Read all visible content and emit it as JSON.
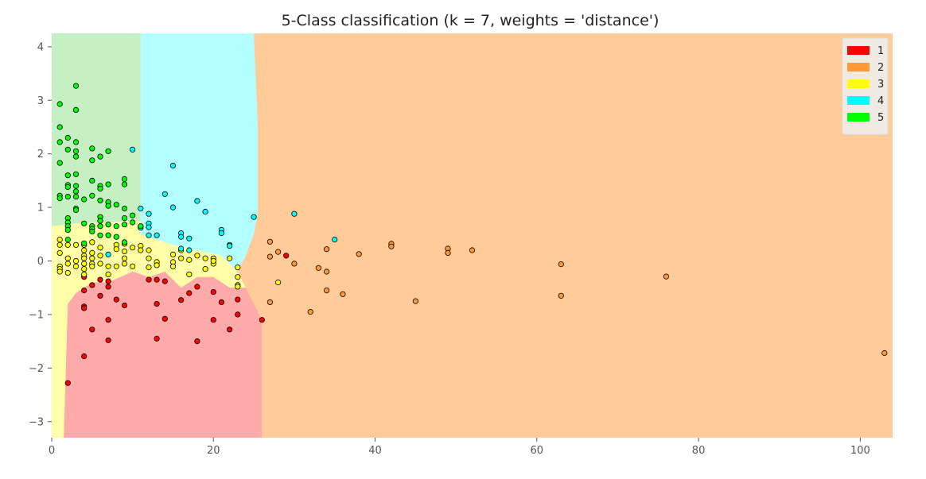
{
  "chart_data": {
    "type": "scatter",
    "title": "5-Class classification (k = 7, weights = 'distance')",
    "xlabel": "",
    "ylabel": "",
    "xlim": [
      0,
      104
    ],
    "ylim": [
      -3.3,
      4.25
    ],
    "xticks": [
      0,
      20,
      40,
      60,
      80,
      100
    ],
    "yticks": [
      -3,
      -2,
      -1,
      0,
      1,
      2,
      3,
      4
    ],
    "grid": false,
    "legend_position": "top-right",
    "background": "decision-regions",
    "region_colors": {
      "1": "#ffaaaa",
      "2": "#ffcc99",
      "3": "#ffffaa",
      "4": "#b3ffff",
      "5": "#c4f0c4"
    },
    "decision_regions": [
      {
        "class": "5",
        "polygon": [
          [
            0,
            4.25
          ],
          [
            11,
            4.25
          ],
          [
            11,
            0.75
          ],
          [
            7,
            0.72
          ],
          [
            3,
            0.7
          ],
          [
            0,
            0.65
          ]
        ]
      },
      {
        "class": "4",
        "polygon": [
          [
            11,
            4.25
          ],
          [
            25,
            4.25
          ],
          [
            25.5,
            2.5
          ],
          [
            25.5,
            0.9
          ],
          [
            25,
            0.5
          ],
          [
            24,
            0.1
          ],
          [
            23,
            -0.2
          ],
          [
            21,
            0.1
          ],
          [
            18,
            0.2
          ],
          [
            15,
            0.3
          ],
          [
            13,
            0.4
          ],
          [
            11,
            0.5
          ]
        ]
      },
      {
        "class": "3",
        "polygon": [
          [
            0,
            0.65
          ],
          [
            3,
            0.7
          ],
          [
            7,
            0.72
          ],
          [
            11,
            0.75
          ],
          [
            11,
            0.5
          ],
          [
            13,
            0.4
          ],
          [
            15,
            0.3
          ],
          [
            18,
            0.2
          ],
          [
            21,
            0.1
          ],
          [
            23,
            -0.2
          ],
          [
            24,
            -0.5
          ],
          [
            22,
            -0.5
          ],
          [
            20,
            -0.3
          ],
          [
            18,
            -0.3
          ],
          [
            16,
            -0.5
          ],
          [
            14,
            -0.2
          ],
          [
            12,
            -0.3
          ],
          [
            10,
            -0.2
          ],
          [
            7,
            -0.4
          ],
          [
            5,
            -0.4
          ],
          [
            3,
            -0.6
          ],
          [
            2,
            -0.8
          ],
          [
            1.5,
            -3.3
          ],
          [
            0,
            -3.3
          ]
        ]
      },
      {
        "class": "1",
        "polygon": [
          [
            1.5,
            -3.3
          ],
          [
            2,
            -0.8
          ],
          [
            3,
            -0.6
          ],
          [
            5,
            -0.4
          ],
          [
            7,
            -0.4
          ],
          [
            10,
            -0.2
          ],
          [
            12,
            -0.3
          ],
          [
            14,
            -0.2
          ],
          [
            16,
            -0.5
          ],
          [
            18,
            -0.3
          ],
          [
            20,
            -0.3
          ],
          [
            22,
            -0.5
          ],
          [
            24,
            -0.5
          ],
          [
            25,
            -0.8
          ],
          [
            26,
            -1.1
          ],
          [
            26,
            -3.3
          ]
        ]
      },
      {
        "class": "2",
        "polygon": [
          [
            25,
            4.25
          ],
          [
            104,
            4.25
          ],
          [
            104,
            -3.3
          ],
          [
            26,
            -3.3
          ],
          [
            26,
            -1.1
          ],
          [
            25,
            -0.8
          ],
          [
            24,
            -0.5
          ],
          [
            25,
            0.5
          ],
          [
            25.5,
            0.9
          ],
          [
            25.5,
            2.5
          ]
        ]
      }
    ],
    "colors": {
      "1": "#ff0000",
      "2": "#ff9933",
      "3": "#ffff00",
      "4": "#00ffff",
      "5": "#00ff00"
    },
    "legend": [
      "1",
      "2",
      "3",
      "4",
      "5"
    ],
    "series": [
      {
        "name": "1",
        "points": [
          [
            2,
            -2.28
          ],
          [
            4,
            -0.3
          ],
          [
            4,
            -0.55
          ],
          [
            4,
            -0.85
          ],
          [
            4,
            -0.88
          ],
          [
            4,
            -1.78
          ],
          [
            5,
            -0.45
          ],
          [
            5,
            -1.28
          ],
          [
            6,
            -0.35
          ],
          [
            6,
            -0.65
          ],
          [
            7,
            -0.38
          ],
          [
            7,
            -0.48
          ],
          [
            7,
            -1.1
          ],
          [
            7,
            -1.48
          ],
          [
            8,
            -0.72
          ],
          [
            9,
            -0.83
          ],
          [
            12,
            -0.35
          ],
          [
            13,
            -0.35
          ],
          [
            13,
            -0.8
          ],
          [
            13,
            -1.45
          ],
          [
            14,
            -0.38
          ],
          [
            14,
            -1.08
          ],
          [
            16,
            -0.73
          ],
          [
            17,
            -0.6
          ],
          [
            18,
            -0.48
          ],
          [
            18,
            -1.5
          ],
          [
            20,
            -0.58
          ],
          [
            20,
            -1.1
          ],
          [
            21,
            -0.77
          ],
          [
            22,
            -1.28
          ],
          [
            23,
            -0.72
          ],
          [
            23,
            -1.0
          ],
          [
            26,
            -1.1
          ],
          [
            29,
            0.1
          ]
        ]
      },
      {
        "name": "2",
        "points": [
          [
            27,
            0.36
          ],
          [
            27,
            0.08
          ],
          [
            28,
            0.17
          ],
          [
            27,
            -0.77
          ],
          [
            30,
            -0.05
          ],
          [
            32,
            -0.95
          ],
          [
            33,
            -0.13
          ],
          [
            34,
            0.22
          ],
          [
            34,
            -0.2
          ],
          [
            34,
            -0.55
          ],
          [
            36,
            -0.62
          ],
          [
            38,
            0.13
          ],
          [
            42,
            0.32
          ],
          [
            42,
            0.27
          ],
          [
            45,
            -0.75
          ],
          [
            49,
            0.23
          ],
          [
            49,
            0.15
          ],
          [
            52,
            0.2
          ],
          [
            63,
            -0.06
          ],
          [
            63,
            -0.65
          ],
          [
            76,
            -0.29
          ],
          [
            103,
            -1.72
          ]
        ]
      },
      {
        "name": "3",
        "points": [
          [
            1,
            0.3
          ],
          [
            1,
            0.15
          ],
          [
            1,
            0.4
          ],
          [
            1,
            -0.1
          ],
          [
            1,
            -0.15
          ],
          [
            1,
            -0.2
          ],
          [
            2,
            0.3
          ],
          [
            2,
            0.05
          ],
          [
            2,
            -0.05
          ],
          [
            2,
            -0.22
          ],
          [
            3,
            0.3
          ],
          [
            3,
            0.0
          ],
          [
            3,
            -0.1
          ],
          [
            4,
            0.3
          ],
          [
            4,
            0.2
          ],
          [
            4,
            0.1
          ],
          [
            4,
            0.05
          ],
          [
            4,
            -0.05
          ],
          [
            4,
            -0.15
          ],
          [
            4,
            -0.25
          ],
          [
            5,
            0.35
          ],
          [
            5,
            0.15
          ],
          [
            5,
            0.05
          ],
          [
            5,
            -0.05
          ],
          [
            5,
            -0.1
          ],
          [
            6,
            0.25
          ],
          [
            6,
            0.1
          ],
          [
            6,
            -0.05
          ],
          [
            7,
            -0.1
          ],
          [
            7,
            -0.25
          ],
          [
            8,
            0.3
          ],
          [
            8,
            0.22
          ],
          [
            8,
            -0.1
          ],
          [
            9,
            0.32
          ],
          [
            9,
            0.18
          ],
          [
            9,
            0.05
          ],
          [
            9,
            -0.05
          ],
          [
            10,
            0.25
          ],
          [
            10,
            -0.1
          ],
          [
            11,
            0.28
          ],
          [
            11,
            0.2
          ],
          [
            12,
            0.05
          ],
          [
            12,
            -0.12
          ],
          [
            12,
            0.2
          ],
          [
            13,
            -0.02
          ],
          [
            13,
            -0.08
          ],
          [
            15,
            0.12
          ],
          [
            15,
            -0.02
          ],
          [
            15,
            -0.1
          ],
          [
            16,
            0.05
          ],
          [
            16,
            0.2
          ],
          [
            17,
            0.02
          ],
          [
            17,
            -0.25
          ],
          [
            18,
            0.1
          ],
          [
            19,
            0.05
          ],
          [
            19,
            -0.15
          ],
          [
            20,
            0.05
          ],
          [
            20,
            -0.05
          ],
          [
            20,
            0.0
          ],
          [
            22,
            0.3
          ],
          [
            22,
            0.05
          ],
          [
            23,
            -0.12
          ],
          [
            23,
            -0.3
          ],
          [
            23,
            -0.45
          ],
          [
            23,
            -0.48
          ],
          [
            28,
            -0.4
          ]
        ]
      },
      {
        "name": "4",
        "points": [
          [
            7,
            0.12
          ],
          [
            10,
            2.08
          ],
          [
            11,
            0.98
          ],
          [
            11,
            0.62
          ],
          [
            12,
            0.88
          ],
          [
            12,
            0.7
          ],
          [
            12,
            0.63
          ],
          [
            12,
            0.48
          ],
          [
            13,
            0.48
          ],
          [
            14,
            1.25
          ],
          [
            15,
            1.78
          ],
          [
            15,
            1.0
          ],
          [
            16,
            0.52
          ],
          [
            16,
            0.45
          ],
          [
            16,
            0.23
          ],
          [
            17,
            0.42
          ],
          [
            17,
            0.2
          ],
          [
            18,
            1.12
          ],
          [
            19,
            0.92
          ],
          [
            21,
            0.58
          ],
          [
            21,
            0.52
          ],
          [
            22,
            0.28
          ],
          [
            25,
            0.82
          ],
          [
            30,
            0.88
          ],
          [
            35,
            0.4
          ]
        ]
      },
      {
        "name": "5",
        "points": [
          [
            1,
            2.93
          ],
          [
            1,
            2.5
          ],
          [
            1,
            2.22
          ],
          [
            1,
            1.83
          ],
          [
            1,
            1.22
          ],
          [
            1,
            1.17
          ],
          [
            2,
            2.3
          ],
          [
            2,
            2.08
          ],
          [
            2,
            1.6
          ],
          [
            2,
            1.42
          ],
          [
            2,
            1.38
          ],
          [
            2,
            1.2
          ],
          [
            2,
            0.8
          ],
          [
            2,
            0.72
          ],
          [
            2,
            0.65
          ],
          [
            2,
            0.58
          ],
          [
            2,
            0.4
          ],
          [
            3,
            3.27
          ],
          [
            3,
            2.82
          ],
          [
            3,
            2.22
          ],
          [
            3,
            2.05
          ],
          [
            3,
            1.95
          ],
          [
            3,
            1.62
          ],
          [
            3,
            1.4
          ],
          [
            3,
            1.3
          ],
          [
            3,
            1.2
          ],
          [
            3,
            0.98
          ],
          [
            3,
            0.95
          ],
          [
            4,
            1.15
          ],
          [
            4,
            0.7
          ],
          [
            4,
            0.33
          ],
          [
            5,
            2.1
          ],
          [
            5,
            1.88
          ],
          [
            5,
            1.5
          ],
          [
            5,
            1.22
          ],
          [
            5,
            0.65
          ],
          [
            5,
            0.6
          ],
          [
            5,
            0.55
          ],
          [
            6,
            1.95
          ],
          [
            6,
            1.4
          ],
          [
            6,
            1.35
          ],
          [
            6,
            1.13
          ],
          [
            6,
            0.82
          ],
          [
            6,
            0.75
          ],
          [
            6,
            0.65
          ],
          [
            6,
            0.48
          ],
          [
            7,
            2.05
          ],
          [
            7,
            1.43
          ],
          [
            7,
            1.1
          ],
          [
            7,
            1.03
          ],
          [
            7,
            0.68
          ],
          [
            7,
            0.48
          ],
          [
            8,
            1.05
          ],
          [
            8,
            0.65
          ],
          [
            8,
            0.45
          ],
          [
            9,
            1.53
          ],
          [
            9,
            1.43
          ],
          [
            9,
            0.98
          ],
          [
            9,
            0.8
          ],
          [
            9,
            0.68
          ],
          [
            9,
            0.35
          ],
          [
            10,
            0.85
          ],
          [
            10,
            0.72
          ],
          [
            11,
            0.65
          ]
        ]
      }
    ]
  }
}
